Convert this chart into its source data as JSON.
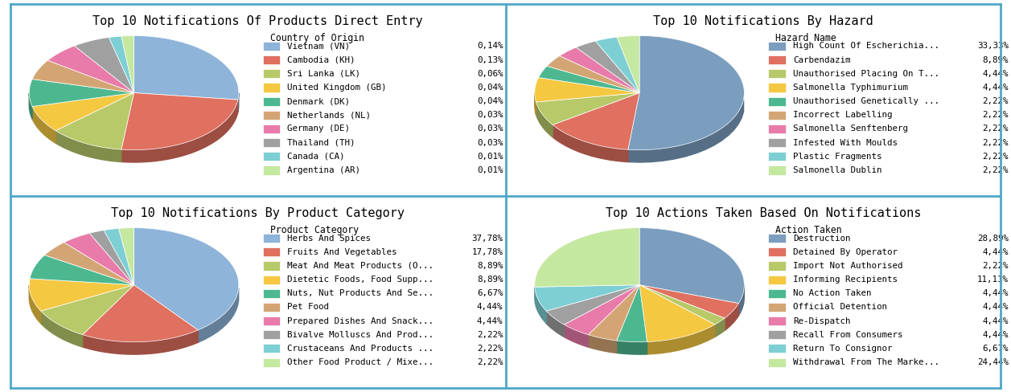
{
  "chart1": {
    "title": "Top 10 Notifications Of Products Direct Entry",
    "legend_title": "Country of Origin",
    "labels": [
      "Vietnam (VN)",
      "Cambodia (KH)",
      "Sri Lanka (LK)",
      "United Kingdom (GB)",
      "Denmark (DK)",
      "Netherlands (NL)",
      "Germany (DE)",
      "Thailand (TH)",
      "Canada (CA)",
      "Argentina (AR)"
    ],
    "values": [
      0.14,
      0.13,
      0.06,
      0.04,
      0.04,
      0.03,
      0.03,
      0.03,
      0.01,
      0.01
    ],
    "pct_labels": [
      "0,14%",
      "0,13%",
      "0,06%",
      "0,04%",
      "0,04%",
      "0,03%",
      "0,03%",
      "0,03%",
      "0,01%",
      "0,01%"
    ],
    "colors": [
      "#8EB4D9",
      "#E07060",
      "#B8C96A",
      "#F5C842",
      "#4DB890",
      "#D4A574",
      "#E87BAA",
      "#A0A0A0",
      "#7ECFD4",
      "#C5E8A0"
    ]
  },
  "chart2": {
    "title": "Top 10 Notifications By Hazard",
    "legend_title": "Hazard Name",
    "labels": [
      "High Count Of Escherichia...",
      "Carbendazim",
      "Unauthorised Placing On T...",
      "Salmonella Typhimurium",
      "Unauthorised Genetically ...",
      "Incorrect Labelling",
      "Salmonella Senftenberg",
      "Infested With Moulds",
      "Plastic Fragments",
      "Salmonella Dublin"
    ],
    "values": [
      33.33,
      8.89,
      4.44,
      4.44,
      2.22,
      2.22,
      2.22,
      2.22,
      2.22,
      2.22
    ],
    "pct_labels": [
      "33,33%",
      "8,89%",
      "4,44%",
      "4,44%",
      "2,22%",
      "2,22%",
      "2,22%",
      "2,22%",
      "2,22%",
      "2,22%"
    ],
    "colors": [
      "#7B9EBF",
      "#E07060",
      "#B8C96A",
      "#F5C842",
      "#4DB890",
      "#D4A574",
      "#E87BAA",
      "#A0A0A0",
      "#7ECFD4",
      "#C5E8A0"
    ]
  },
  "chart3": {
    "title": "Top 10 Notifications By Product Category",
    "legend_title": "Product Category",
    "labels": [
      "Herbs And Spices",
      "Fruits And Vegetables",
      "Meat And Meat Products (O...",
      "Dietetic Foods, Food Supp...",
      "Nuts, Nut Products And Se...",
      "Pet Food",
      "Prepared Dishes And Snack...",
      "Bivalve Molluscs And Prod...",
      "Crustaceans And Products ...",
      "Other Food Product / Mixe..."
    ],
    "values": [
      37.78,
      17.78,
      8.89,
      8.89,
      6.67,
      4.44,
      4.44,
      2.22,
      2.22,
      2.22
    ],
    "pct_labels": [
      "37,78%",
      "17,78%",
      "8,89%",
      "8,89%",
      "6,67%",
      "4,44%",
      "4,44%",
      "2,22%",
      "2,22%",
      "2,22%"
    ],
    "colors": [
      "#8EB4D9",
      "#E07060",
      "#B8C96A",
      "#F5C842",
      "#4DB890",
      "#D4A574",
      "#E87BAA",
      "#A0A0A0",
      "#7ECFD4",
      "#C5E8A0"
    ]
  },
  "chart4": {
    "title": "Top 10 Actions Taken Based On Notifications",
    "legend_title": "Action Taken",
    "labels": [
      "Destruction",
      "Detained By Operator",
      "Import Not Authorised",
      "Informing Recipients",
      "No Action Taken",
      "Official Detention",
      "Re-Dispatch",
      "Recall From Consumers",
      "Return To Consignor",
      "Withdrawal From The Marke..."
    ],
    "values": [
      28.89,
      4.44,
      2.22,
      11.11,
      4.44,
      4.44,
      4.44,
      4.44,
      6.67,
      24.44
    ],
    "pct_labels": [
      "28,89%",
      "4,44%",
      "2,22%",
      "11,11%",
      "4,44%",
      "4,44%",
      "4,44%",
      "4,44%",
      "6,67%",
      "24,44%"
    ],
    "colors": [
      "#7B9EBF",
      "#E07060",
      "#B8C96A",
      "#F5C842",
      "#4DB890",
      "#D4A574",
      "#E87BAA",
      "#A0A0A0",
      "#7ECFD4",
      "#C5E8A0"
    ]
  },
  "bg_color": "#FFFFFF",
  "border_color": "#4FA8C8",
  "title_fontsize": 11,
  "legend_fontsize": 7.8
}
